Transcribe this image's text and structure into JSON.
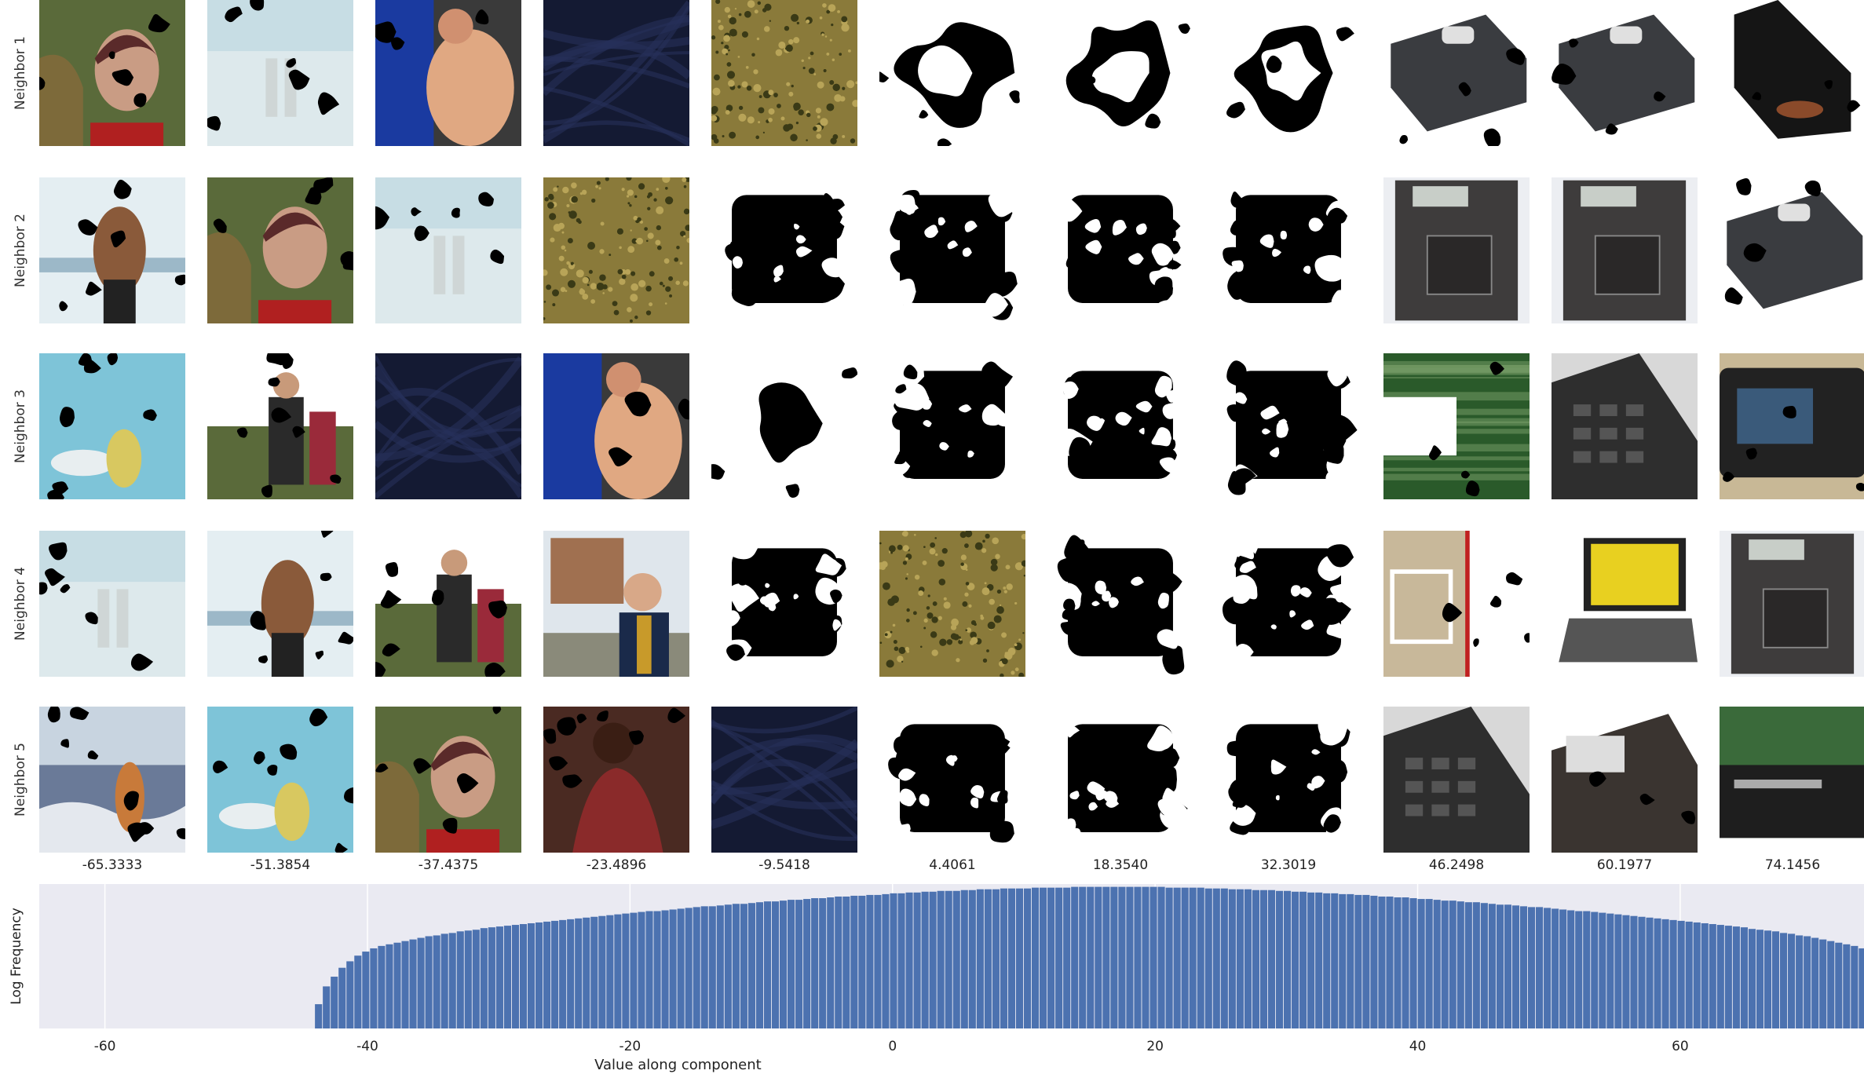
{
  "row_labels": [
    "Neighbor 1",
    "Neighbor 2",
    "Neighbor 3",
    "Neighbor 4",
    "Neighbor 5"
  ],
  "column_values": [
    "-65.3333",
    "-51.3854",
    "-37.4375",
    "-23.4896",
    "-9.5418",
    "4.4061",
    "18.3540",
    "32.3019",
    "46.2498",
    "60.1977",
    "74.1456"
  ],
  "tiles": [
    [
      "portrait-woman-foliage",
      "snow-figure",
      "shirtless-man-blue",
      "dark-blue-fabric",
      "olive-speckled-texture",
      "mask-ring",
      "mask-ring",
      "mask-ring",
      "gray-device-case",
      "gray-device-case",
      "open-black-case"
    ],
    [
      "shirtless-man-beach",
      "portrait-woman-foliage",
      "snow-figure",
      "olive-speckled-texture",
      "mask-square",
      "mask-square",
      "mask-square",
      "mask-square",
      "cassette-recorder",
      "cassette-recorder",
      "gray-device-case"
    ],
    [
      "sky-bird-figure",
      "group-people-outdoor",
      "dark-blue-fabric",
      "shirtless-man-blue",
      "mask-blob",
      "mask-square",
      "mask-square",
      "mask-square",
      "green-motion-blur",
      "phone-keypad",
      "camera-back"
    ],
    [
      "snow-figure",
      "shirtless-man-beach",
      "group-people-outdoor",
      "man-smiling-building",
      "mask-square",
      "olive-speckled-texture",
      "mask-square",
      "mask-square",
      "beige-board-red-edge",
      "laptop-yellow-screen",
      "cassette-recorder"
    ],
    [
      "beach-figure-waves",
      "sky-bird-figure",
      "portrait-woman-foliage",
      "man-dark-red-shirt",
      "dark-blue-fabric",
      "mask-square",
      "mask-square",
      "mask-square",
      "phone-keypad",
      "dark-machine",
      "stereo-receiver"
    ]
  ],
  "chart_data": {
    "type": "bar",
    "xlabel": "Value along component",
    "ylabel": "Log Frequency",
    "xlim": [
      -65,
      74
    ],
    "xticks": [
      -60,
      -40,
      -20,
      0,
      20,
      40,
      60
    ],
    "grid": true,
    "bar_color": "#4c72b0",
    "background": "#eaeaf2",
    "bins": {
      "start": -44,
      "width": 0.6,
      "values": [
        0.3,
        0.52,
        0.64,
        0.75,
        0.83,
        0.9,
        0.95,
        0.99,
        1.02,
        1.04,
        1.06,
        1.08,
        1.1,
        1.12,
        1.14,
        1.15,
        1.17,
        1.18,
        1.2,
        1.21,
        1.22,
        1.24,
        1.25,
        1.26,
        1.27,
        1.28,
        1.29,
        1.3,
        1.31,
        1.32,
        1.33,
        1.34,
        1.35,
        1.36,
        1.37,
        1.38,
        1.39,
        1.4,
        1.41,
        1.42,
        1.43,
        1.44,
        1.45,
        1.45,
        1.46,
        1.47,
        1.48,
        1.49,
        1.5,
        1.51,
        1.51,
        1.52,
        1.53,
        1.54,
        1.54,
        1.55,
        1.56,
        1.57,
        1.57,
        1.58,
        1.59,
        1.59,
        1.6,
        1.61,
        1.61,
        1.62,
        1.63,
        1.63,
        1.64,
        1.64,
        1.65,
        1.65,
        1.66,
        1.67,
        1.67,
        1.68,
        1.68,
        1.69,
        1.69,
        1.7,
        1.7,
        1.7,
        1.71,
        1.71,
        1.72,
        1.72,
        1.72,
        1.73,
        1.73,
        1.73,
        1.73,
        1.74,
        1.74,
        1.74,
        1.74,
        1.74,
        1.75,
        1.75,
        1.75,
        1.75,
        1.75,
        1.75,
        1.75,
        1.75,
        1.75,
        1.75,
        1.75,
        1.75,
        1.74,
        1.74,
        1.74,
        1.74,
        1.74,
        1.73,
        1.73,
        1.73,
        1.72,
        1.72,
        1.72,
        1.71,
        1.71,
        1.71,
        1.7,
        1.7,
        1.69,
        1.69,
        1.68,
        1.68,
        1.67,
        1.67,
        1.66,
        1.66,
        1.65,
        1.65,
        1.64,
        1.63,
        1.63,
        1.62,
        1.62,
        1.61,
        1.6,
        1.6,
        1.59,
        1.58,
        1.58,
        1.57,
        1.56,
        1.56,
        1.55,
        1.54,
        1.53,
        1.53,
        1.52,
        1.51,
        1.5,
        1.5,
        1.49,
        1.48,
        1.47,
        1.46,
        1.45,
        1.45,
        1.44,
        1.43,
        1.42,
        1.41,
        1.4,
        1.39,
        1.38,
        1.37,
        1.36,
        1.35,
        1.34,
        1.33,
        1.32,
        1.31,
        1.3,
        1.29,
        1.28,
        1.27,
        1.26,
        1.25,
        1.23,
        1.22,
        1.21,
        1.2,
        1.18,
        1.17,
        1.15,
        1.14,
        1.12,
        1.1,
        1.08,
        1.06,
        1.04,
        1.02,
        0.99,
        0.96,
        0.93,
        0.88,
        0.82,
        0.73,
        0.6,
        0.38
      ]
    }
  }
}
